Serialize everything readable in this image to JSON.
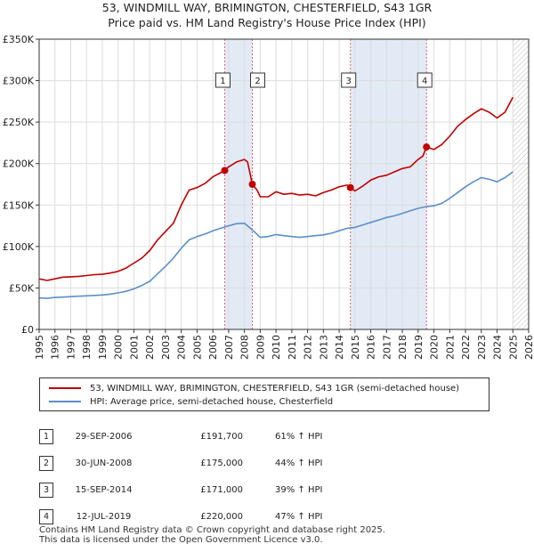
{
  "header": {
    "title": "53, WINDMILL WAY, BRIMINGTON, CHESTERFIELD, S43 1GR",
    "subtitle": "Price paid vs. HM Land Registry's House Price Index (HPI)"
  },
  "colors": {
    "property": "#c00000",
    "hpi": "#5b8fc9",
    "sale_band": "#dde6f5",
    "hatch": "#bbbbbb"
  },
  "chart_data": {
    "type": "line",
    "title": "53, WINDMILL WAY, BRIMINGTON, CHESTERFIELD, S43 1GR",
    "subtitle": "Price paid vs. HM Land Registry's House Price Index (HPI)",
    "xlabel": "",
    "ylabel": "",
    "xlim": [
      1995,
      2026
    ],
    "ylim": [
      0,
      350000
    ],
    "yticks": [
      0,
      50000,
      100000,
      150000,
      200000,
      250000,
      300000,
      350000
    ],
    "ytick_labels": [
      "£0",
      "£50K",
      "£100K",
      "£150K",
      "£200K",
      "£250K",
      "£300K",
      "£350K"
    ],
    "xticks": [
      "1995",
      "1996",
      "1997",
      "1998",
      "1999",
      "2000",
      "2001",
      "2002",
      "2003",
      "2004",
      "2005",
      "2006",
      "2007",
      "2008",
      "2009",
      "2010",
      "2011",
      "2012",
      "2013",
      "2014",
      "2015",
      "2016",
      "2017",
      "2018",
      "2019",
      "2020",
      "2021",
      "2022",
      "2023",
      "2024",
      "2025",
      "2026"
    ],
    "grid": true,
    "forecast_from": 2025.0,
    "series": [
      {
        "name": "53, WINDMILL WAY, BRIMINGTON, CHESTERFIELD, S43 1GR (semi-detached house)",
        "color": "#c00000",
        "x": [
          1995.0,
          1995.5,
          1996.0,
          1996.5,
          1997.0,
          1997.5,
          1998.0,
          1998.5,
          1999.0,
          1999.5,
          2000.0,
          2000.5,
          2001.0,
          2001.5,
          2002.0,
          2002.5,
          2003.0,
          2003.5,
          2004.0,
          2004.5,
          2005.0,
          2005.5,
          2006.0,
          2006.5,
          2006.75,
          2007.0,
          2007.5,
          2008.0,
          2008.2,
          2008.5,
          2008.8,
          2009.0,
          2009.5,
          2010.0,
          2010.5,
          2011.0,
          2011.5,
          2012.0,
          2012.5,
          2013.0,
          2013.5,
          2014.0,
          2014.5,
          2014.71,
          2015.0,
          2015.5,
          2016.0,
          2016.5,
          2017.0,
          2017.5,
          2018.0,
          2018.5,
          2019.0,
          2019.3,
          2019.53,
          2020.0,
          2020.5,
          2021.0,
          2021.5,
          2022.0,
          2022.5,
          2023.0,
          2023.5,
          2024.0,
          2024.5,
          2025.0
        ],
        "values": [
          61000,
          59000,
          61000,
          63000,
          63500,
          64000,
          65000,
          66000,
          66500,
          68000,
          70000,
          74000,
          80000,
          86000,
          95000,
          108000,
          118000,
          128000,
          150000,
          168000,
          171000,
          176000,
          184000,
          189000,
          191700,
          196000,
          202000,
          205000,
          202000,
          175000,
          168000,
          160000,
          160000,
          166000,
          163000,
          164000,
          162000,
          163000,
          161000,
          165000,
          168000,
          172000,
          174000,
          171000,
          167000,
          173000,
          180000,
          184000,
          186000,
          190000,
          194000,
          196000,
          205000,
          209000,
          220000,
          217000,
          223000,
          233000,
          245000,
          253000,
          260000,
          266000,
          262000,
          255000,
          262000,
          280000
        ]
      },
      {
        "name": "HPI: Average price, semi-detached house, Chesterfield",
        "color": "#5b8fc9",
        "x": [
          1995.0,
          1995.5,
          1996.0,
          1996.5,
          1997.0,
          1997.5,
          1998.0,
          1998.5,
          1999.0,
          1999.5,
          2000.0,
          2000.5,
          2001.0,
          2001.5,
          2002.0,
          2002.5,
          2003.0,
          2003.5,
          2004.0,
          2004.5,
          2005.0,
          2005.5,
          2006.0,
          2006.5,
          2007.0,
          2007.5,
          2008.0,
          2008.5,
          2009.0,
          2009.5,
          2010.0,
          2010.5,
          2011.0,
          2011.5,
          2012.0,
          2012.5,
          2013.0,
          2013.5,
          2014.0,
          2014.5,
          2015.0,
          2015.5,
          2016.0,
          2016.5,
          2017.0,
          2017.5,
          2018.0,
          2018.5,
          2019.0,
          2019.5,
          2020.0,
          2020.5,
          2021.0,
          2021.5,
          2022.0,
          2022.5,
          2023.0,
          2023.5,
          2024.0,
          2024.5,
          2025.0
        ],
        "values": [
          38000,
          37500,
          38500,
          39000,
          39500,
          40000,
          40500,
          41000,
          41500,
          42500,
          44000,
          46000,
          49000,
          53000,
          58000,
          67000,
          76000,
          86000,
          98000,
          108000,
          112000,
          115000,
          119000,
          122000,
          125000,
          127500,
          128000,
          120000,
          111000,
          112000,
          114500,
          113000,
          112000,
          111000,
          112000,
          113000,
          114000,
          116000,
          119000,
          122000,
          123000,
          126000,
          129000,
          132000,
          135000,
          137000,
          140000,
          143000,
          146000,
          148000,
          149000,
          152000,
          158000,
          165000,
          172000,
          178000,
          183000,
          181000,
          178000,
          183000,
          190000
        ]
      }
    ],
    "sales": [
      {
        "label": "1",
        "x": 2006.75,
        "value": 191700
      },
      {
        "label": "2",
        "x": 2008.5,
        "value": 175000
      },
      {
        "label": "3",
        "x": 2014.71,
        "value": 171000
      },
      {
        "label": "4",
        "x": 2019.53,
        "value": 220000
      }
    ]
  },
  "legend": {
    "property": "53, WINDMILL WAY, BRIMINGTON, CHESTERFIELD, S43 1GR (semi-detached house)",
    "hpi": "HPI: Average price, semi-detached house, Chesterfield"
  },
  "transactions": [
    {
      "num": "1",
      "date": "29-SEP-2006",
      "price": "£191,700",
      "hpi": "61% ↑ HPI"
    },
    {
      "num": "2",
      "date": "30-JUN-2008",
      "price": "£175,000",
      "hpi": "44% ↑ HPI"
    },
    {
      "num": "3",
      "date": "15-SEP-2014",
      "price": "£171,000",
      "hpi": "39% ↑ HPI"
    },
    {
      "num": "4",
      "date": "12-JUL-2019",
      "price": "£220,000",
      "hpi": "47% ↑ HPI"
    }
  ],
  "footer": {
    "line1": "Contains HM Land Registry data © Crown copyright and database right 2025.",
    "line2": "This data is licensed under the Open Government Licence v3.0."
  }
}
